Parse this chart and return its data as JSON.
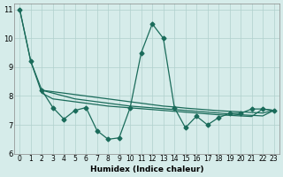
{
  "xlabel": "Humidex (Indice chaleur)",
  "xlim": [
    -0.5,
    23.5
  ],
  "ylim": [
    6,
    11.2
  ],
  "yticks": [
    6,
    7,
    8,
    9,
    10,
    11
  ],
  "xticks": [
    0,
    1,
    2,
    3,
    4,
    5,
    6,
    7,
    8,
    9,
    10,
    11,
    12,
    13,
    14,
    15,
    16,
    17,
    18,
    19,
    20,
    21,
    22,
    23
  ],
  "line_color": "#1a6b5a",
  "bg_color": "#d6ecea",
  "grid_color": "#b0d0cd",
  "line0": {
    "x": [
      0,
      1,
      2,
      3,
      4,
      5,
      6,
      7,
      8,
      9,
      10,
      11,
      12,
      13,
      14,
      15,
      16,
      17,
      18,
      19,
      20,
      21,
      22,
      23
    ],
    "y": [
      11.0,
      9.2,
      8.2,
      7.6,
      7.2,
      7.5,
      7.6,
      6.8,
      6.5,
      6.55,
      7.6,
      9.5,
      10.5,
      10.0,
      7.6,
      6.9,
      7.3,
      7.0,
      7.25,
      7.4,
      7.4,
      7.55,
      7.55,
      7.5
    ]
  },
  "line1": {
    "x": [
      0,
      1,
      2,
      3,
      4,
      5,
      6,
      7,
      8,
      9,
      10,
      11,
      12,
      13,
      14,
      15,
      16,
      17,
      18,
      19,
      20,
      21,
      22,
      23
    ],
    "y": [
      11.0,
      9.2,
      8.1,
      7.9,
      7.85,
      7.8,
      7.75,
      7.7,
      7.65,
      7.62,
      7.59,
      7.56,
      7.53,
      7.5,
      7.47,
      7.44,
      7.41,
      7.38,
      7.35,
      7.33,
      7.31,
      7.29,
      7.55,
      7.5
    ]
  },
  "line2": {
    "x": [
      2,
      3,
      4,
      5,
      6,
      7,
      8,
      9,
      10,
      11,
      12,
      13,
      14,
      15,
      16,
      17,
      18,
      19,
      20,
      21,
      22,
      23
    ],
    "y": [
      8.2,
      8.1,
      8.0,
      7.9,
      7.85,
      7.8,
      7.75,
      7.7,
      7.65,
      7.62,
      7.59,
      7.56,
      7.53,
      7.5,
      7.47,
      7.44,
      7.41,
      7.38,
      7.35,
      7.33,
      7.31,
      7.5
    ]
  },
  "line3": {
    "x": [
      2,
      3,
      4,
      5,
      6,
      7,
      8,
      9,
      10,
      11,
      12,
      13,
      14,
      15,
      16,
      17,
      18,
      19,
      20,
      21,
      22,
      23
    ],
    "y": [
      8.2,
      8.15,
      8.1,
      8.05,
      8.0,
      7.95,
      7.9,
      7.85,
      7.8,
      7.75,
      7.7,
      7.65,
      7.62,
      7.58,
      7.55,
      7.52,
      7.49,
      7.47,
      7.45,
      7.43,
      7.41,
      7.5
    ]
  }
}
